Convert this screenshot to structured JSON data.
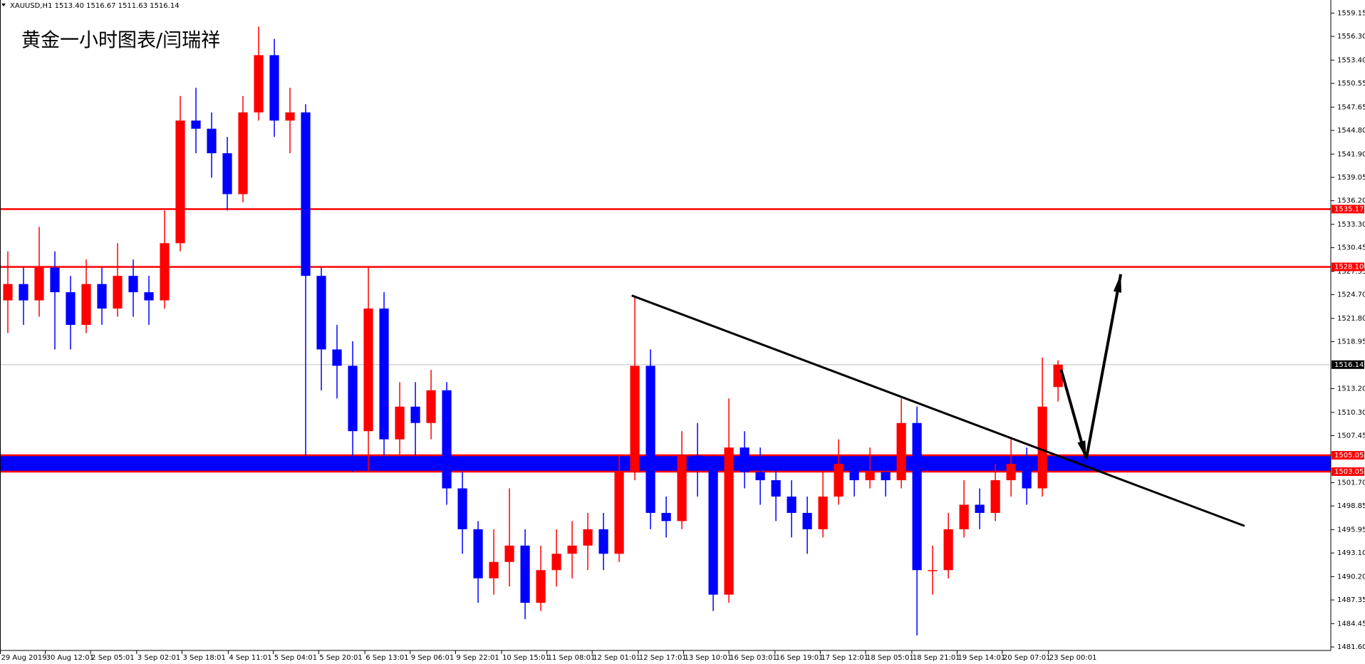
{
  "chart_data": {
    "type": "candlestick",
    "header": "XAUUSD,H1  1513.40 1516.67 1511.63 1516.14",
    "title": "黄金一小时图表/闫瑞祥",
    "up_color": "#ff0000",
    "down_color": "#0000ff",
    "x": [
      0,
      1,
      2,
      3,
      4,
      5,
      6,
      7,
      8,
      9,
      10,
      11,
      12,
      13,
      14,
      15,
      16,
      17,
      18,
      19,
      20,
      21,
      22,
      23,
      24,
      25,
      26,
      27,
      28,
      29,
      30,
      31,
      32,
      33,
      34,
      35,
      36,
      37,
      38,
      39,
      40,
      41,
      42,
      43,
      44,
      45,
      46,
      47,
      48,
      49,
      50,
      51,
      52,
      53,
      54,
      55,
      56,
      57,
      58,
      59,
      60,
      61,
      62,
      63,
      64,
      65,
      66,
      67
    ],
    "open": [
      1524,
      1526,
      1524,
      1528,
      1525,
      1521,
      1526,
      1523,
      1527,
      1525,
      1524,
      1531,
      1546,
      1545,
      1542,
      1537,
      1547,
      1554,
      1546,
      1547,
      1527,
      1518,
      1516,
      1508,
      1523,
      1507,
      1511,
      1509,
      1513,
      1501,
      1496,
      1490,
      1492,
      1494,
      1487,
      1491,
      1493,
      1494,
      1496,
      1493,
      1503,
      1516,
      1498,
      1497,
      1505,
      1504,
      1488,
      1506,
      1503,
      1502,
      1500,
      1498,
      1496,
      1500,
      1504,
      1502,
      1503,
      1502,
      1509,
      1491,
      1491,
      1496,
      1499,
      1498,
      1502,
      1504,
      1501,
      1513.4
    ],
    "high": [
      1530,
      1528,
      1533,
      1530,
      1527,
      1529,
      1528,
      1531,
      1529,
      1527,
      1535,
      1549,
      1550,
      1547,
      1544,
      1549,
      1557.5,
      1556,
      1550,
      1548,
      1528,
      1521,
      1519,
      1528,
      1525,
      1514,
      1514,
      1515.5,
      1514,
      1503,
      1497,
      1496,
      1501,
      1496,
      1494,
      1496,
      1497,
      1498,
      1498,
      1505,
      1524.6,
      1518,
      1500,
      1508,
      1509,
      1505,
      1512,
      1508,
      1506,
      1505,
      1502,
      1500,
      1503,
      1507,
      1505,
      1506,
      1505,
      1512,
      1511,
      1494,
      1498,
      1502,
      1501,
      1504,
      1507,
      1506,
      1517,
      1516.67
    ],
    "low": [
      1520,
      1521,
      1522,
      1518,
      1518,
      1520,
      1521,
      1522,
      1522,
      1521,
      1523,
      1530,
      1542,
      1539,
      1535,
      1536,
      1546,
      1544,
      1542,
      1505,
      1513,
      1512,
      1503,
      1503,
      1505,
      1505,
      1505,
      1507,
      1499,
      1493,
      1487,
      1488,
      1489,
      1485,
      1486,
      1489,
      1490,
      1491,
      1491,
      1492,
      1502,
      1496,
      1495,
      1496,
      1500,
      1486,
      1487,
      1501,
      1499,
      1497,
      1495,
      1493,
      1495,
      1499,
      1500,
      1501,
      1500,
      1501,
      1483,
      1488,
      1490,
      1495,
      1496,
      1497,
      1500,
      1499,
      1500,
      1511.63
    ],
    "close": [
      1526,
      1524,
      1528,
      1525,
      1521,
      1526,
      1523,
      1527,
      1525,
      1524,
      1531,
      1546,
      1545,
      1542,
      1537,
      1547,
      1554,
      1546,
      1547,
      1527,
      1518,
      1516,
      1508,
      1523,
      1507,
      1511,
      1509,
      1513,
      1501,
      1496,
      1490,
      1492,
      1494,
      1487,
      1491,
      1493,
      1494,
      1496,
      1493,
      1503,
      1516,
      1498,
      1497,
      1505,
      1504,
      1488,
      1506,
      1503,
      1502,
      1500,
      1498,
      1496,
      1500,
      1504,
      1502,
      1503,
      1502,
      1509,
      1491,
      1491,
      1496,
      1499,
      1498,
      1502,
      1504,
      1501,
      1511,
      1516.14
    ],
    "xlim": [
      -0.5,
      84.4
    ],
    "xticks": [
      {
        "value": -0.5,
        "label": "29 Aug 2019"
      },
      {
        "value": 2.39,
        "label": "30 Aug 12:01"
      },
      {
        "value": 5.28,
        "label": "2 Sep 05:01"
      },
      {
        "value": 8.22,
        "label": "3 Sep 02:01"
      },
      {
        "value": 11.11,
        "label": "3 Sep 18:01"
      },
      {
        "value": 14.06,
        "label": "4 Sep 11:01"
      },
      {
        "value": 16.94,
        "label": "5 Sep 04:01"
      },
      {
        "value": 19.83,
        "label": "5 Sep 20:01"
      },
      {
        "value": 22.78,
        "label": "6 Sep 13:01"
      },
      {
        "value": 25.67,
        "label": "9 Sep 06:01"
      },
      {
        "value": 28.56,
        "label": "9 Sep 22:01"
      },
      {
        "value": 31.5,
        "label": "10 Sep 15:01"
      },
      {
        "value": 34.39,
        "label": "11 Sep 08:01"
      },
      {
        "value": 37.28,
        "label": "12 Sep 01:01"
      },
      {
        "value": 40.22,
        "label": "12 Sep 17:01"
      },
      {
        "value": 43.11,
        "label": "13 Sep 10:01"
      },
      {
        "value": 46,
        "label": "16 Sep 03:01"
      },
      {
        "value": 48.94,
        "label": "16 Sep 19:01"
      },
      {
        "value": 51.83,
        "label": "17 Sep 12:01"
      },
      {
        "value": 54.72,
        "label": "18 Sep 05:01"
      },
      {
        "value": 57.67,
        "label": "18 Sep 21:01"
      },
      {
        "value": 60.56,
        "label": "19 Sep 14:01"
      },
      {
        "value": 63.44,
        "label": "20 Sep 07:01"
      },
      {
        "value": 66.39,
        "label": "23 Sep 00:01"
      }
    ],
    "ylim": [
      1481.17,
      1560.75
    ],
    "yticks": [
      {
        "value": 1559.15,
        "label": "1559.15"
      },
      {
        "value": 1556.3,
        "label": "1556.30"
      },
      {
        "value": 1553.4,
        "label": "1553.40"
      },
      {
        "value": 1550.55,
        "label": "1550.55"
      },
      {
        "value": 1547.65,
        "label": "1547.65"
      },
      {
        "value": 1544.8,
        "label": "1544.80"
      },
      {
        "value": 1541.9,
        "label": "1541.90"
      },
      {
        "value": 1539.05,
        "label": "1539.05"
      },
      {
        "value": 1536.2,
        "label": "1536.20"
      },
      {
        "value": 1533.3,
        "label": "1533.30"
      },
      {
        "value": 1530.45,
        "label": "1530.45"
      },
      {
        "value": 1527.55,
        "label": "1527.55"
      },
      {
        "value": 1524.7,
        "label": "1524.70"
      },
      {
        "value": 1521.8,
        "label": "1521.80"
      },
      {
        "value": 1518.95,
        "label": "1518.95"
      },
      {
        "value": 1513.2,
        "label": "1513.20"
      },
      {
        "value": 1510.3,
        "label": "1510.30"
      },
      {
        "value": 1507.45,
        "label": "1507.45"
      },
      {
        "value": 1501.7,
        "label": "1501.70"
      },
      {
        "value": 1498.85,
        "label": "1498.85"
      },
      {
        "value": 1495.95,
        "label": "1495.95"
      },
      {
        "value": 1493.1,
        "label": "1493.10"
      },
      {
        "value": 1490.2,
        "label": "1490.20"
      },
      {
        "value": 1487.35,
        "label": "1487.35"
      },
      {
        "value": 1484.45,
        "label": "1484.45"
      },
      {
        "value": 1481.6,
        "label": "1481.60"
      }
    ],
    "band": {
      "range": [
        1503.05,
        1505.05
      ],
      "color": "#0000ff"
    },
    "levels": [
      {
        "value": 1535.17,
        "label": "1535.17",
        "color": "#ff0000"
      },
      {
        "value": 1528.1,
        "label": "1528.10",
        "color": "#ff0000"
      },
      {
        "value": 1505.05,
        "label": "1505.05",
        "color": "#ff0000"
      },
      {
        "value": 1503.05,
        "label": "1503.05",
        "color": "#ff0000"
      },
      {
        "value": 1516.14,
        "label": "1516.14",
        "color": "#c0c0c0"
      }
    ],
    "trendline": {
      "x": [
        39.8,
        78.9
      ],
      "y": [
        1524.6,
        1496.4
      ],
      "color": "#000000"
    },
    "arrow": {
      "x": [
        67.2,
        68.8,
        71.0
      ],
      "y": [
        1515.5,
        1504.6,
        1527.2
      ],
      "color": "#000000"
    }
  }
}
